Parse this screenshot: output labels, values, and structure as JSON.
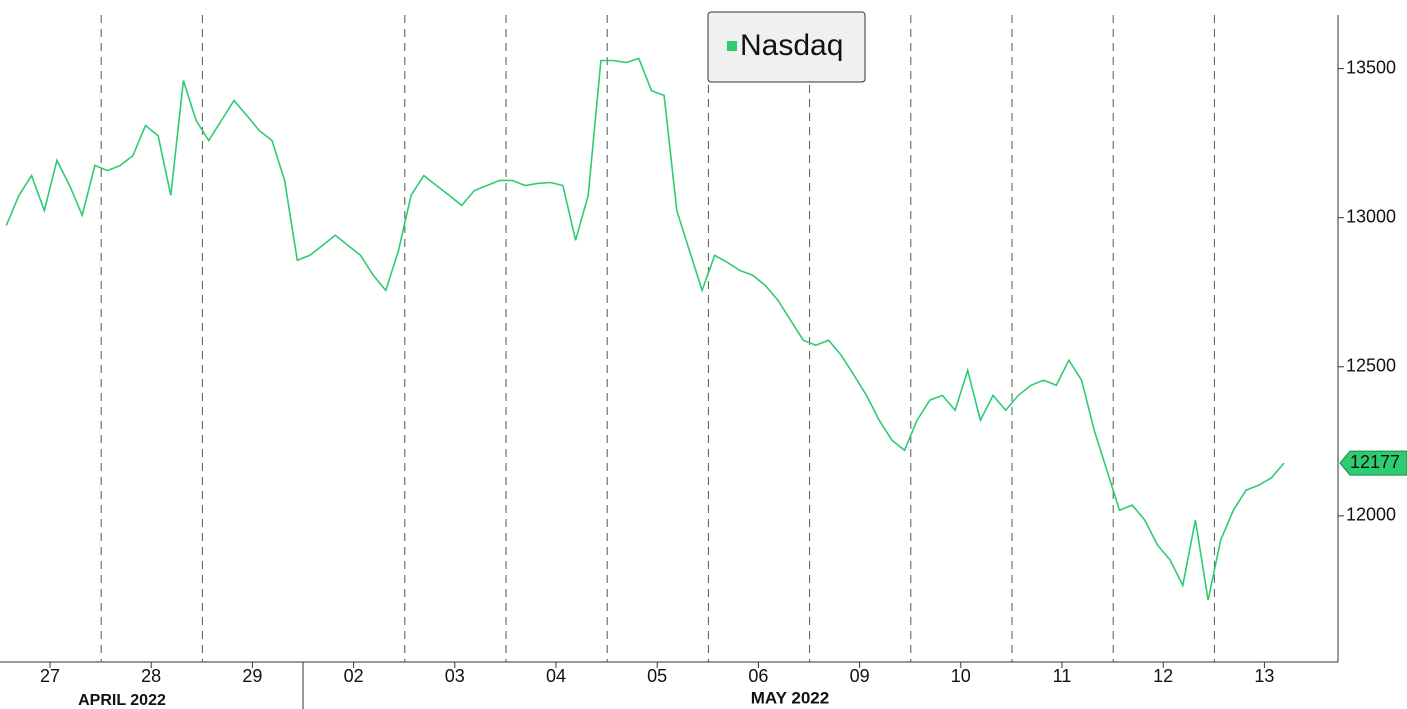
{
  "chart_data": {
    "type": "line",
    "categories": [
      "27",
      "28",
      "29",
      "02",
      "03",
      "04",
      "05",
      "06",
      "09",
      "10",
      "11",
      "12",
      "13"
    ],
    "periods": [
      "APRIL 2022",
      "MAY 2022"
    ],
    "series": [
      {
        "name": "Nasdaq",
        "color": "#2ecc71",
        "values": [
          [
            12974,
            13075,
            13141,
            13024,
            13192,
            13108,
            13008,
            13175
          ],
          [
            13158,
            13175,
            13208,
            13309,
            13275,
            13075,
            13460,
            13326
          ],
          [
            13259,
            13326,
            13393,
            13343,
            13292,
            13259,
            13125,
            12857
          ],
          [
            12874,
            12907,
            12941,
            12907,
            12874,
            12807,
            12756,
            12890
          ],
          [
            13075,
            13141,
            13108,
            13075,
            13041,
            13091,
            13108,
            13125
          ],
          [
            13125,
            13108,
            13115,
            13118,
            13108,
            12924,
            13075,
            13527
          ],
          [
            13527,
            13520,
            13534,
            13426,
            13410,
            13024,
            12890,
            12756
          ],
          [
            12874,
            12850,
            12823,
            12807,
            12773,
            12723,
            12656,
            12589
          ],
          [
            12572,
            12589,
            12539,
            12472,
            12404,
            12321,
            12254,
            12220
          ],
          [
            12321,
            12388,
            12404,
            12354,
            12488,
            12321,
            12404,
            12354
          ],
          [
            12404,
            12438,
            12455,
            12438,
            12522,
            12455,
            12287,
            12153
          ],
          [
            12019,
            12036,
            11986,
            11902,
            11852,
            11767,
            11986,
            11718
          ],
          [
            11919,
            12019,
            12086,
            12103,
            12127,
            12177
          ]
        ]
      }
    ],
    "ylim": [
      11510,
      13730
    ],
    "yticks": [
      12000,
      12500,
      13000,
      13500
    ]
  }
}
